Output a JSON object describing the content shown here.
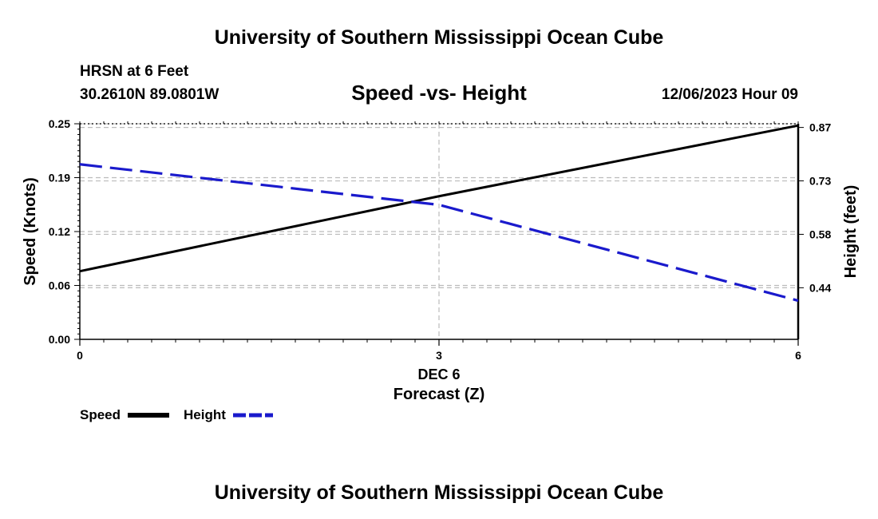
{
  "header": {
    "title": "University of Southern Mississippi Ocean Cube",
    "station": "HRSN at 6 Feet",
    "coords": "30.2610N  89.0801W",
    "chart_title": "Speed -vs- Height",
    "date": "12/06/2023 Hour 09"
  },
  "footer": {
    "title": "University of Southern Mississippi Ocean Cube"
  },
  "colors": {
    "speed": "#000000",
    "height": "#1a1acc",
    "grid": "#bbbbbb"
  },
  "chart_data": {
    "type": "line",
    "title": "Speed -vs- Height",
    "xlabel": "Forecast (Z)",
    "x_date_label": "DEC 6",
    "ylabel_left": "Speed (Knots)",
    "ylabel_right": "Height (feet)",
    "x": [
      0,
      3,
      6
    ],
    "x_ticks": [
      "0",
      "3",
      "6"
    ],
    "xlim": [
      0,
      6
    ],
    "ylim_left": [
      0,
      0.25
    ],
    "ylim_right": [
      0.3,
      0.885
    ],
    "yticks_left": [
      "0.00",
      "0.06",
      "0.12",
      "0.19",
      "0.25"
    ],
    "yticks_left_values": [
      0.0,
      0.0625,
      0.125,
      0.1875,
      0.25
    ],
    "yticks_right": [
      "0.44",
      "0.58",
      "0.73",
      "0.87"
    ],
    "yticks_right_values": [
      0.44,
      0.585,
      0.73,
      0.875
    ],
    "series": [
      {
        "name": "Speed",
        "axis": "left",
        "style": "solid",
        "values": [
          0.079,
          0.166,
          0.248
        ]
      },
      {
        "name": "Height",
        "axis": "right",
        "style": "dashed",
        "values": [
          0.775,
          0.665,
          0.405
        ]
      }
    ],
    "legend": [
      "Speed",
      "Height"
    ],
    "legend_position": "bottom-left",
    "grid": true
  }
}
